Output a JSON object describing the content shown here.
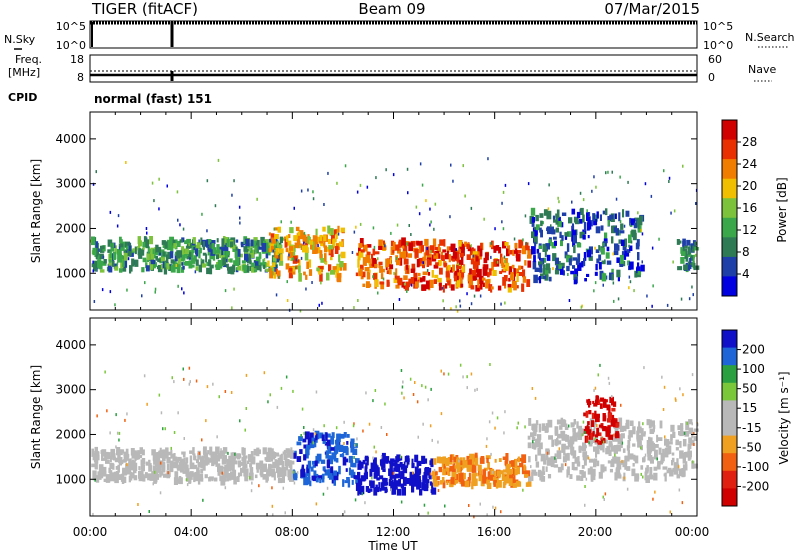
{
  "header": {
    "radar": "TIGER (fitACF)",
    "beam": "Beam 09",
    "date": "07/Mar/2015"
  },
  "strips": {
    "nsky_label": "N.Sky",
    "nsky_ticks": [
      "10^5",
      "10^0"
    ],
    "nsearch_label": "N.Search",
    "nsearch_ticks": [
      "10^5",
      "10^0"
    ],
    "freq_label_1": "Freq.",
    "freq_label_2": "[MHz]",
    "freq_ticks": [
      "18",
      "8"
    ],
    "nave_label": "Nave",
    "nave_ticks": [
      "60",
      "0"
    ],
    "cpid_label": "CPID",
    "cpid_text": "normal (fast) 151"
  },
  "axes": {
    "x_ticks": [
      "00:00",
      "04:00",
      "08:00",
      "12:00",
      "16:00",
      "20:00",
      "00:00"
    ],
    "x_title": "Time UT",
    "y_title": "Slant Range [km]",
    "y_ticks": [
      "4000",
      "3000",
      "2000",
      "1000"
    ]
  },
  "colors": {
    "power": [
      "#0000e0",
      "#1f3fa8",
      "#2e7a55",
      "#3aa84a",
      "#7cc23a",
      "#f0c000",
      "#f07c00",
      "#e83000",
      "#d00000"
    ],
    "velocity": [
      "#1010c8",
      "#1e66d8",
      "#2aa040",
      "#7ac83a",
      "#b8b8b8",
      "#b8b8b8",
      "#f0a020",
      "#f06010",
      "#e02010",
      "#d00000"
    ]
  },
  "power_colorbar": {
    "title": "Power [dB]",
    "ticks": [
      "28",
      "24",
      "20",
      "16",
      "12",
      "8",
      "4"
    ]
  },
  "velocity_colorbar": {
    "title": "Velocity [m s⁻¹]",
    "ticks": [
      "200",
      "100",
      "50",
      "15",
      "-15",
      "-50",
      "-100",
      "-200"
    ]
  },
  "chart_data": [
    {
      "type": "heatmap",
      "name": "power",
      "xlabel": "Time UT",
      "ylabel": "Slant Range [km]",
      "xlim": [
        0,
        24
      ],
      "ylim": [
        180,
        4600
      ],
      "colorbar": {
        "label": "Power [dB]",
        "range": [
          0,
          30
        ]
      },
      "features": [
        {
          "t": [
            0,
            7.5
          ],
          "range_km": [
            1050,
            1750
          ],
          "power_db": 10,
          "desc": "band"
        },
        {
          "t": [
            7,
            10
          ],
          "range_km": [
            900,
            2000
          ],
          "power_db": 20
        },
        {
          "t": [
            10.5,
            17.3
          ],
          "range_km": [
            650,
            1700
          ],
          "power_db": 24
        },
        {
          "t": [
            17.3,
            21.8
          ],
          "range_km": [
            800,
            2400
          ],
          "power_db": 6
        },
        {
          "t": [
            23.2,
            24
          ],
          "range_km": [
            1100,
            1700
          ],
          "power_db": 8
        }
      ]
    },
    {
      "type": "heatmap",
      "name": "velocity",
      "xlabel": "Time UT",
      "ylabel": "Slant Range [km]",
      "xlim": [
        0,
        24
      ],
      "ylim": [
        180,
        4600
      ],
      "colorbar": {
        "label": "Velocity [m s⁻¹]",
        "range": [
          -200,
          200
        ]
      },
      "features": [
        {
          "t": [
            0,
            8
          ],
          "range_km": [
            950,
            1650
          ],
          "velocity": 0
        },
        {
          "t": [
            8,
            10.5
          ],
          "range_km": [
            900,
            2000
          ],
          "velocity": 150
        },
        {
          "t": [
            10.5,
            13.5
          ],
          "range_km": [
            700,
            1500
          ],
          "velocity": 200
        },
        {
          "t": [
            13.5,
            17.3
          ],
          "range_km": [
            850,
            1500
          ],
          "velocity": -70
        },
        {
          "t": [
            17.3,
            24
          ],
          "range_km": [
            1000,
            2300
          ],
          "velocity": 0
        },
        {
          "t": [
            19.5,
            20.8
          ],
          "range_km": [
            1800,
            2800
          ],
          "velocity": -180
        }
      ]
    }
  ]
}
